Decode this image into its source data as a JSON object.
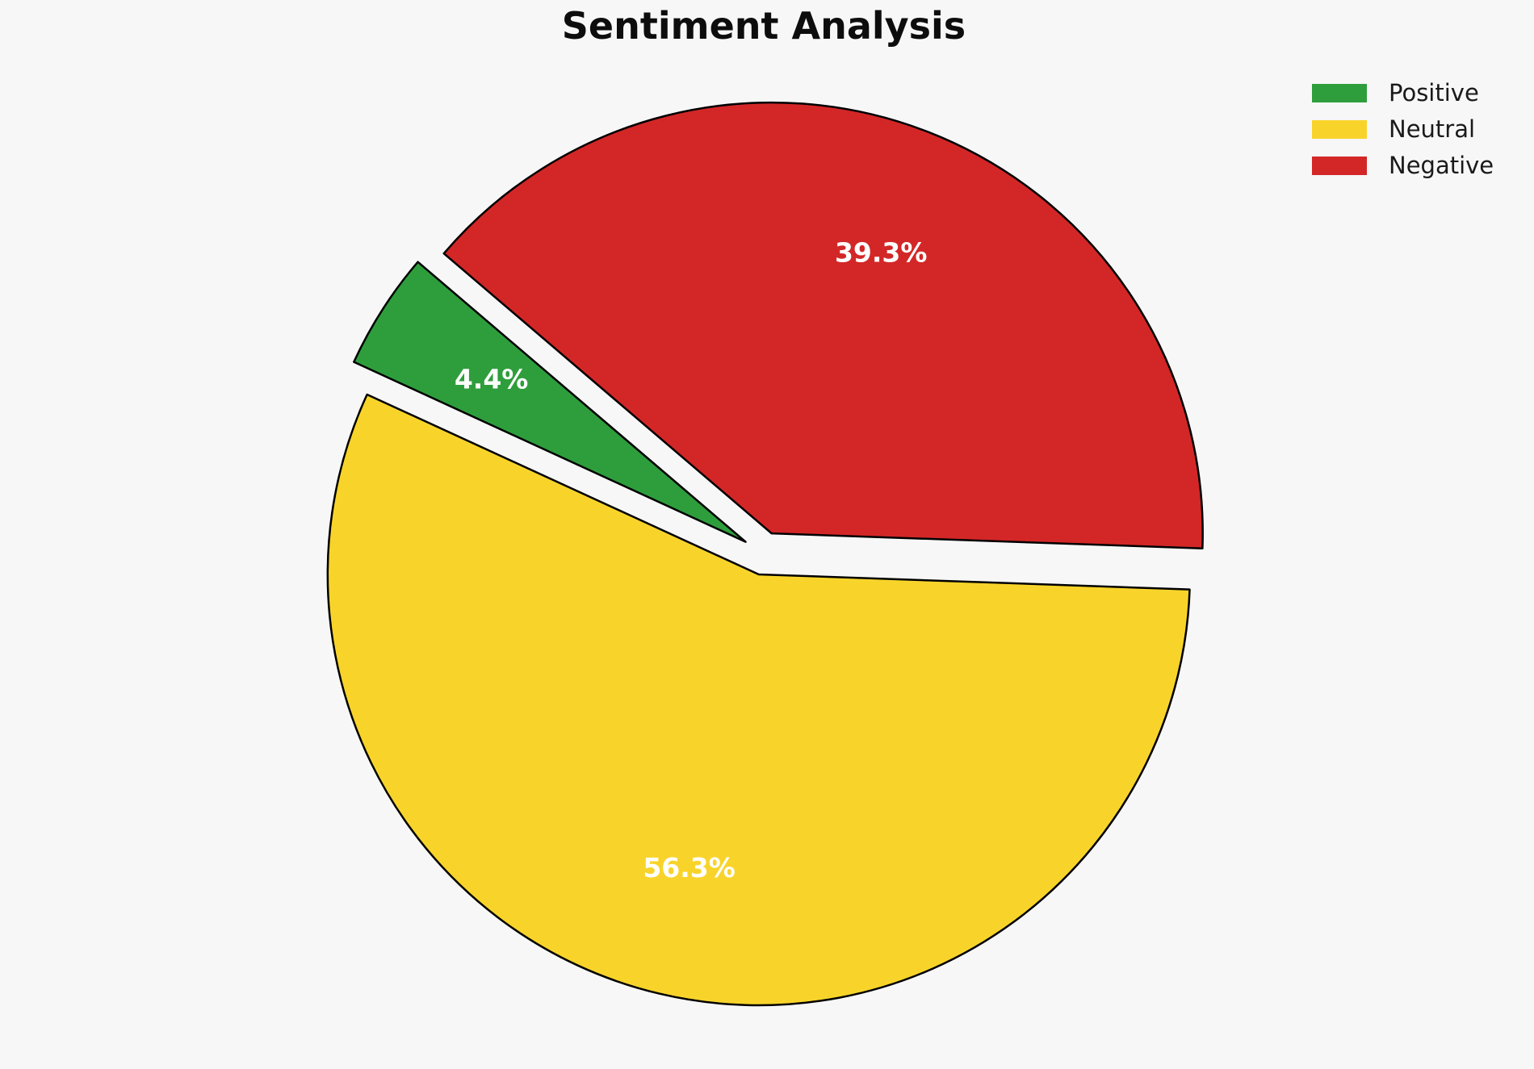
{
  "title": "Sentiment Analysis",
  "background_color": "#f7f7f7",
  "chart_data": {
    "type": "pie",
    "title": "Sentiment Analysis",
    "unit": "percent",
    "categories": [
      "Positive",
      "Neutral",
      "Negative"
    ],
    "values": [
      4.4,
      56.3,
      39.3
    ],
    "colors": {
      "Positive": "#2e9e3c",
      "Neutral": "#f8d42b",
      "Negative": "#d32727"
    },
    "slices": [
      {
        "label": "Negative",
        "value": 39.3,
        "pct_label": "39.3%",
        "color": "#d32727"
      },
      {
        "label": "Positive",
        "value": 4.4,
        "pct_label": "4.4%",
        "color": "#2e9e3c"
      },
      {
        "label": "Neutral",
        "value": 56.3,
        "pct_label": "56.3%",
        "color": "#f8d42b"
      }
    ],
    "start_angle_deg": -2,
    "direction": "counterclockwise",
    "explode": 0.05,
    "wedge_edge_color": "#000000",
    "pct_label_color": "#ffffff",
    "legend_position": "upper-right",
    "legend_entries": [
      "Positive",
      "Neutral",
      "Negative"
    ]
  },
  "legend": {
    "items": [
      {
        "label": "Positive",
        "color": "#2e9e3c"
      },
      {
        "label": "Neutral",
        "color": "#f8d42b"
      },
      {
        "label": "Negative",
        "color": "#d32727"
      }
    ]
  }
}
